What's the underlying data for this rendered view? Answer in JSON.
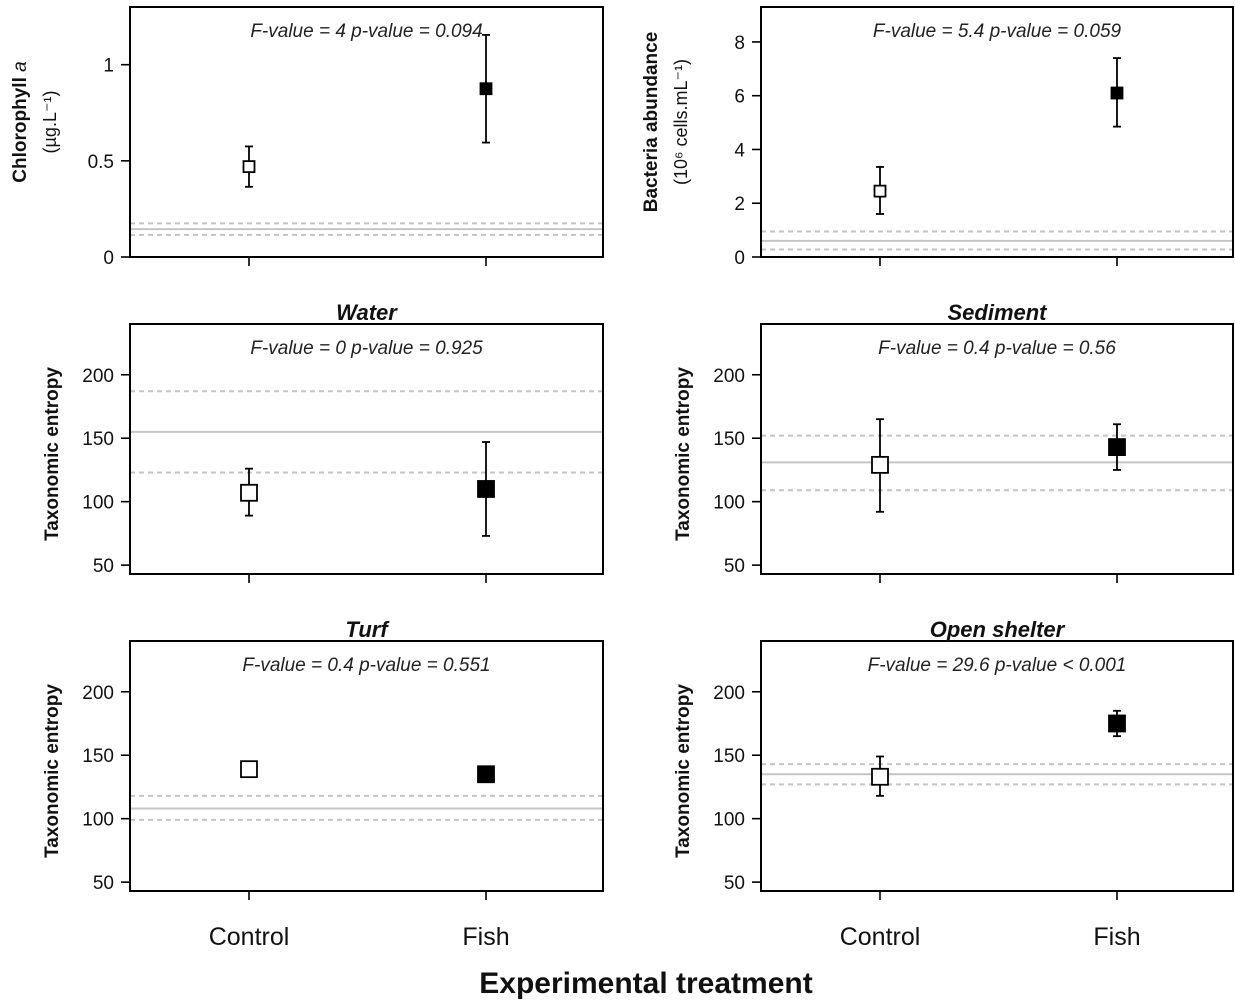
{
  "figure": {
    "x_title": "Experimental treatment",
    "categories": [
      "Control",
      "Fish"
    ]
  },
  "chart_data": [
    {
      "type": "scatter",
      "panel": "chlorophyll",
      "title": "",
      "ylabel_main": "Chlorophyll",
      "ylabel_italic": "a",
      "ylabel_unit": "(µg.L⁻¹)",
      "stat_text": "F-value = 4   p-value = 0.094",
      "ylim": [
        0,
        1.3
      ],
      "yticks": [
        0,
        0.5,
        1
      ],
      "categories": [
        "Control",
        "Fish"
      ],
      "values": [
        0.47,
        0.875
      ],
      "err_low": [
        0.365,
        0.595
      ],
      "err_high": [
        0.575,
        1.155
      ],
      "reference": {
        "mean": 0.145,
        "low": 0.115,
        "high": 0.175
      },
      "marker_fill": [
        "#ffffff",
        "#000000"
      ]
    },
    {
      "type": "scatter",
      "panel": "bacteria",
      "title": "",
      "ylabel_main": "Bacteria abundance",
      "ylabel_unit": "(10⁶ cells.mL⁻¹)",
      "stat_text": "F-value = 5.4   p-value = 0.059",
      "ylim": [
        0,
        9.3
      ],
      "yticks": [
        0,
        2,
        4,
        6,
        8
      ],
      "categories": [
        "Control",
        "Fish"
      ],
      "values": [
        2.45,
        6.1
      ],
      "err_low": [
        1.6,
        4.85
      ],
      "err_high": [
        3.35,
        7.4
      ],
      "reference": {
        "mean": 0.6,
        "low": 0.28,
        "high": 0.95
      },
      "marker_fill": [
        "#ffffff",
        "#000000"
      ]
    },
    {
      "type": "scatter",
      "panel": "water",
      "title": "Water",
      "ylabel_main": "Taxonomic entropy",
      "ylabel_unit": "",
      "stat_text": "F-value = 0   p-value = 0.925",
      "ylim": [
        43,
        240
      ],
      "yticks": [
        50,
        100,
        150,
        200
      ],
      "categories": [
        "Control",
        "Fish"
      ],
      "values": [
        107,
        110
      ],
      "err_low": [
        89,
        73
      ],
      "err_high": [
        126,
        147
      ],
      "reference": {
        "mean": 155,
        "low": 123,
        "high": 187
      },
      "marker_fill": [
        "#ffffff",
        "#000000"
      ]
    },
    {
      "type": "scatter",
      "panel": "sediment",
      "title": "Sediment",
      "ylabel_main": "Taxonomic entropy",
      "ylabel_unit": "",
      "stat_text": "F-value = 0.4   p-value = 0.56",
      "ylim": [
        43,
        240
      ],
      "yticks": [
        50,
        100,
        150,
        200
      ],
      "categories": [
        "Control",
        "Fish"
      ],
      "values": [
        129,
        143
      ],
      "err_low": [
        92,
        125
      ],
      "err_high": [
        165,
        161
      ],
      "reference": {
        "mean": 131,
        "low": 109,
        "high": 152
      },
      "marker_fill": [
        "#ffffff",
        "#000000"
      ]
    },
    {
      "type": "scatter",
      "panel": "turf",
      "title": "Turf",
      "ylabel_main": "Taxonomic entropy",
      "ylabel_unit": "",
      "stat_text": "F-value = 0.4   p-value = 0.551",
      "ylim": [
        43,
        240
      ],
      "yticks": [
        50,
        100,
        150,
        200
      ],
      "categories": [
        "Control",
        "Fish"
      ],
      "values": [
        139,
        135
      ],
      "err_low": [
        134,
        129
      ],
      "err_high": [
        145,
        141
      ],
      "reference": {
        "mean": 108,
        "low": 99,
        "high": 118
      },
      "marker_fill": [
        "#ffffff",
        "#000000"
      ]
    },
    {
      "type": "scatter",
      "panel": "open_shelter",
      "title": "Open shelter",
      "ylabel_main": "Taxonomic entropy",
      "ylabel_unit": "",
      "stat_text": "F-value = 29.6   p-value < 0.001",
      "ylim": [
        43,
        240
      ],
      "yticks": [
        50,
        100,
        150,
        200
      ],
      "categories": [
        "Control",
        "Fish"
      ],
      "values": [
        133,
        175
      ],
      "err_low": [
        118,
        165
      ],
      "err_high": [
        149,
        185
      ],
      "reference": {
        "mean": 135,
        "low": 127,
        "high": 143
      },
      "marker_fill": [
        "#ffffff",
        "#000000"
      ]
    }
  ]
}
